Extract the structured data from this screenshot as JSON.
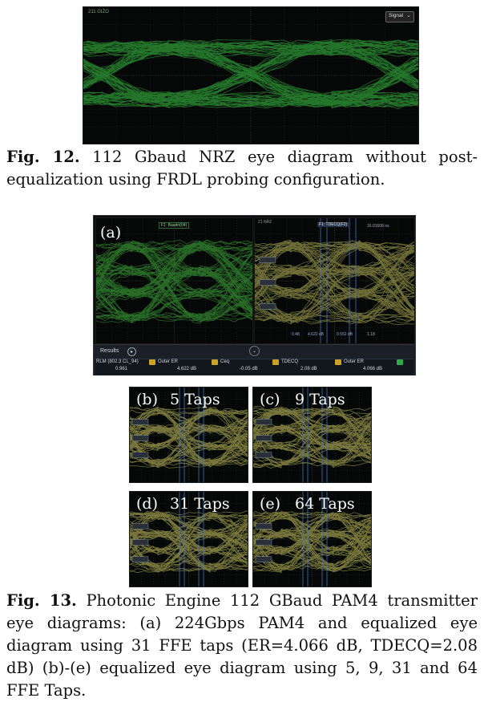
{
  "fig12": {
    "scope_text": "211 GIZO",
    "signal_label": "Signal",
    "caption_label": "Fig. 12.",
    "caption_text": "112 Gbaud NRZ eye diagram without post-equalization using FRDL probing configuration."
  },
  "fig13": {
    "panel_a": {
      "label": "(a)",
      "left_scope_tag": "F1: Baudrt(04)",
      "right_scope_tag": "F1: TDECQ(F2)",
      "right_top_text": "16.01608 ns",
      "right_top_left": "21 NRZ",
      "bottom_values": [
        "0.48",
        "4.622 dB",
        "0.552 dB",
        "1.18"
      ]
    },
    "results": {
      "title": "Results",
      "cells": [
        {
          "label": "RLM (802.3 CL_94)",
          "value": "0.961"
        },
        {
          "label": "Outer ER",
          "value": "4.622 dB"
        },
        {
          "label": "Ceq",
          "value": "-0.05 dB"
        },
        {
          "label": "TDECQ",
          "value": "2.08 dB"
        },
        {
          "label": "Outer ER",
          "value": "4.066 dB"
        }
      ]
    },
    "panels": [
      {
        "label": "(b)",
        "taps": "5 Taps"
      },
      {
        "label": "(c)",
        "taps": "9 Taps"
      },
      {
        "label": "(d)",
        "taps": "31 Taps"
      },
      {
        "label": "(e)",
        "taps": "64 Taps"
      }
    ],
    "caption_label": "Fig. 13.",
    "caption_text": "Photonic Engine 112 GBaud PAM4 transmitter eye diagrams: (a) 224Gbps PAM4 and equalized eye diagram using 31 FFE taps (ER=4.066 dB, TDECQ=2.08 dB) (b)-(e) equalized eye diagram using 5, 9, 31 and 64 FFE Taps."
  },
  "colors": {
    "nrz_green": "#3fd14a",
    "pam4_green": "#4fd04a",
    "pam4_yellow": "#d9d36a",
    "scope_bg": "#050806"
  }
}
